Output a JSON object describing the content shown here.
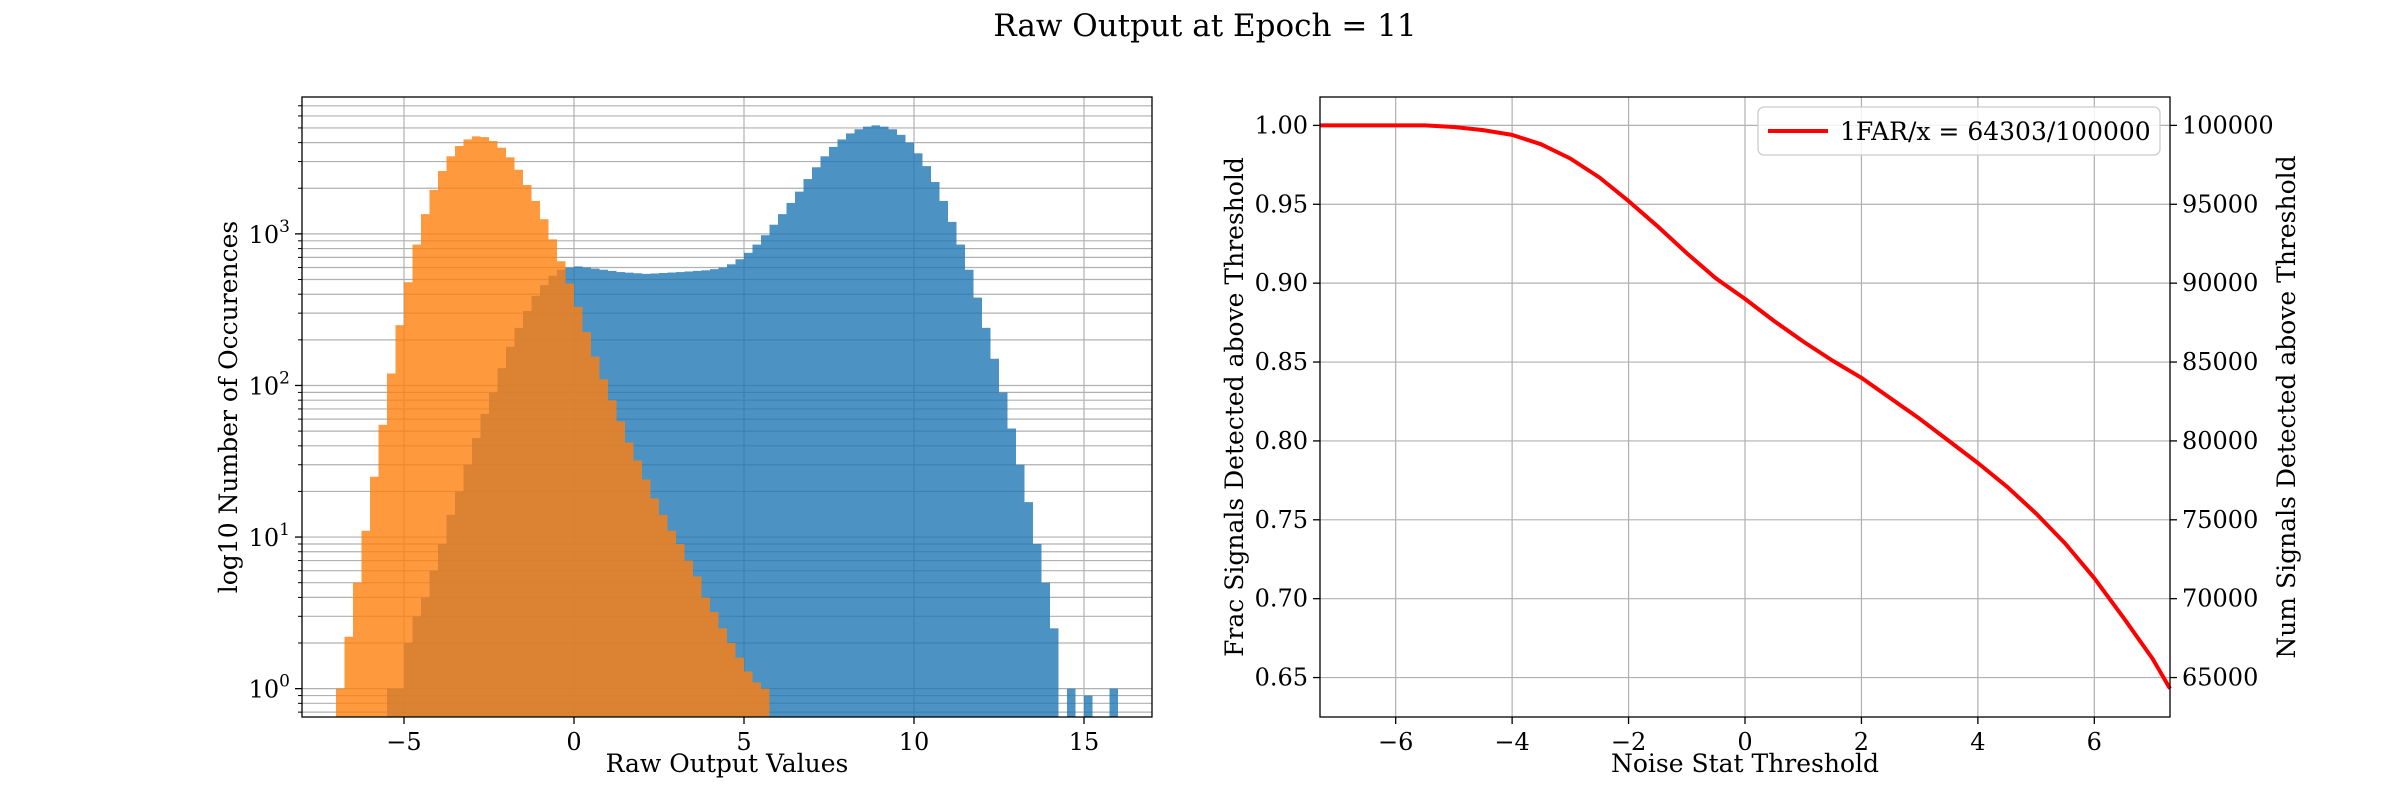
{
  "figure": {
    "title": "Raw Output at Epoch = 11"
  },
  "chart_data": [
    {
      "type": "histogram",
      "yscale": "log",
      "xlabel": "Raw Output Values",
      "ylabel": "log10 Number of Occurences",
      "xlim": [
        -8,
        17
      ],
      "ylim": [
        0.65,
        8000
      ],
      "xticks": [
        -5,
        0,
        5,
        10,
        15
      ],
      "yticks": [
        {
          "value": 1,
          "base": "10",
          "exp": "0"
        },
        {
          "value": 10,
          "base": "10",
          "exp": "1"
        },
        {
          "value": 100,
          "base": "10",
          "exp": "2"
        },
        {
          "value": 1000,
          "base": "10",
          "exp": "3"
        }
      ],
      "grid": true,
      "bin_width": 0.25,
      "series": [
        {
          "color": "#1f77b4",
          "alpha": 0.8,
          "bins": [
            [
              -5.5,
              1
            ],
            [
              -5.25,
              1
            ],
            [
              -5.0,
              2
            ],
            [
              -4.75,
              3
            ],
            [
              -4.5,
              4
            ],
            [
              -4.25,
              6
            ],
            [
              -4.0,
              9
            ],
            [
              -3.75,
              14
            ],
            [
              -3.5,
              20
            ],
            [
              -3.25,
              30
            ],
            [
              -3.0,
              45
            ],
            [
              -2.75,
              65
            ],
            [
              -2.5,
              90
            ],
            [
              -2.25,
              130
            ],
            [
              -2.0,
              180
            ],
            [
              -1.75,
              240
            ],
            [
              -1.5,
              310
            ],
            [
              -1.25,
              390
            ],
            [
              -1.0,
              460
            ],
            [
              -0.75,
              530
            ],
            [
              -0.5,
              580
            ],
            [
              -0.25,
              600
            ],
            [
              0.0,
              610
            ],
            [
              0.25,
              600
            ],
            [
              0.5,
              590
            ],
            [
              0.75,
              580
            ],
            [
              1.0,
              570
            ],
            [
              1.25,
              560
            ],
            [
              1.5,
              555
            ],
            [
              1.75,
              550
            ],
            [
              2.0,
              545
            ],
            [
              2.25,
              548
            ],
            [
              2.5,
              552
            ],
            [
              2.75,
              556
            ],
            [
              3.0,
              560
            ],
            [
              3.25,
              565
            ],
            [
              3.5,
              570
            ],
            [
              3.75,
              575
            ],
            [
              4.0,
              585
            ],
            [
              4.25,
              600
            ],
            [
              4.5,
              630
            ],
            [
              4.75,
              680
            ],
            [
              5.0,
              750
            ],
            [
              5.25,
              850
            ],
            [
              5.5,
              980
            ],
            [
              5.75,
              1150
            ],
            [
              6.0,
              1350
            ],
            [
              6.25,
              1600
            ],
            [
              6.5,
              1900
            ],
            [
              6.75,
              2300
            ],
            [
              7.0,
              2750
            ],
            [
              7.25,
              3250
            ],
            [
              7.5,
              3750
            ],
            [
              7.75,
              4200
            ],
            [
              8.0,
              4600
            ],
            [
              8.25,
              4900
            ],
            [
              8.5,
              5100
            ],
            [
              8.75,
              5200
            ],
            [
              9.0,
              5100
            ],
            [
              9.25,
              4900
            ],
            [
              9.5,
              4500
            ],
            [
              9.75,
              4000
            ],
            [
              10.0,
              3400
            ],
            [
              10.25,
              2800
            ],
            [
              10.5,
              2200
            ],
            [
              10.75,
              1650
            ],
            [
              11.0,
              1200
            ],
            [
              11.25,
              850
            ],
            [
              11.5,
              580
            ],
            [
              11.75,
              380
            ],
            [
              12.0,
              240
            ],
            [
              12.25,
              150
            ],
            [
              12.5,
              90
            ],
            [
              12.75,
              52
            ],
            [
              13.0,
              30
            ],
            [
              13.25,
              17
            ],
            [
              13.5,
              9
            ],
            [
              13.75,
              5
            ],
            [
              14.0,
              2.5
            ],
            [
              14.25,
              0
            ],
            [
              14.5,
              1
            ],
            [
              14.75,
              0
            ],
            [
              15.0,
              0.9
            ],
            [
              15.25,
              0
            ],
            [
              15.5,
              0
            ],
            [
              15.75,
              1
            ]
          ]
        },
        {
          "color": "#ff7f0e",
          "alpha": 0.8,
          "bins": [
            [
              -7.0,
              1
            ],
            [
              -6.75,
              2.2
            ],
            [
              -6.5,
              5
            ],
            [
              -6.25,
              11
            ],
            [
              -6.0,
              25
            ],
            [
              -5.75,
              55
            ],
            [
              -5.5,
              120
            ],
            [
              -5.25,
              250
            ],
            [
              -5.0,
              480
            ],
            [
              -4.75,
              850
            ],
            [
              -4.5,
              1350
            ],
            [
              -4.25,
              1950
            ],
            [
              -4.0,
              2600
            ],
            [
              -3.75,
              3250
            ],
            [
              -3.5,
              3800
            ],
            [
              -3.25,
              4200
            ],
            [
              -3.0,
              4400
            ],
            [
              -2.75,
              4350
            ],
            [
              -2.5,
              4100
            ],
            [
              -2.25,
              3700
            ],
            [
              -2.0,
              3200
            ],
            [
              -1.75,
              2650
            ],
            [
              -1.5,
              2100
            ],
            [
              -1.25,
              1650
            ],
            [
              -1.0,
              1250
            ],
            [
              -0.75,
              920
            ],
            [
              -0.5,
              660
            ],
            [
              -0.25,
              470
            ],
            [
              0.0,
              330
            ],
            [
              0.25,
              225
            ],
            [
              0.5,
              155
            ],
            [
              0.75,
              110
            ],
            [
              1.0,
              80
            ],
            [
              1.25,
              58
            ],
            [
              1.5,
              42
            ],
            [
              1.75,
              32
            ],
            [
              2.0,
              24
            ],
            [
              2.25,
              18
            ],
            [
              2.5,
              14
            ],
            [
              2.75,
              11
            ],
            [
              3.0,
              9
            ],
            [
              3.25,
              7
            ],
            [
              3.5,
              5.5
            ],
            [
              3.75,
              4
            ],
            [
              4.0,
              3.2
            ],
            [
              4.25,
              2.5
            ],
            [
              4.5,
              2
            ],
            [
              4.75,
              1.6
            ],
            [
              5.0,
              1.3
            ],
            [
              5.25,
              1.1
            ],
            [
              5.5,
              1
            ],
            [
              5.75,
              0
            ],
            [
              6.0,
              0
            ],
            [
              6.25,
              0
            ]
          ]
        }
      ]
    },
    {
      "type": "line",
      "xlabel": "Noise Stat Threshold",
      "ylabel": "Frac Signals Detected above Threshold",
      "y2label": "Num Signals Detected above Threshold",
      "xlim": [
        -7.3,
        7.3
      ],
      "ylim": [
        0.625,
        1.018
      ],
      "y2lim": [
        62500,
        101800
      ],
      "xticks": [
        -6,
        -4,
        -2,
        0,
        2,
        4,
        6
      ],
      "xtick_labels": [
        "−6",
        "−4",
        "−2",
        "0",
        "2",
        "4",
        "6"
      ],
      "yticks": [
        0.65,
        0.7,
        0.75,
        0.8,
        0.85,
        0.9,
        0.95,
        1.0
      ],
      "ytick_labels": [
        "0.65",
        "0.70",
        "0.75",
        "0.80",
        "0.85",
        "0.90",
        "0.95",
        "1.00"
      ],
      "y2ticks": [
        65000,
        70000,
        75000,
        80000,
        85000,
        90000,
        95000,
        100000
      ],
      "y2tick_labels": [
        "65000",
        "70000",
        "75000",
        "80000",
        "85000",
        "90000",
        "95000",
        "100000"
      ],
      "grid": true,
      "legend": "top-right",
      "series": [
        {
          "name": "1FAR/x = 64303/100000",
          "color": "#ff0000",
          "x": [
            -7.3,
            -6.5,
            -6.0,
            -5.5,
            -5.0,
            -4.5,
            -4.0,
            -3.5,
            -3.0,
            -2.5,
            -2.0,
            -1.5,
            -1.0,
            -0.5,
            0.0,
            0.5,
            1.0,
            1.5,
            2.0,
            2.5,
            3.0,
            3.5,
            4.0,
            4.5,
            5.0,
            5.5,
            6.0,
            6.5,
            7.0,
            7.3
          ],
          "y": [
            1.0,
            1.0,
            1.0,
            1.0,
            0.999,
            0.997,
            0.994,
            0.988,
            0.979,
            0.967,
            0.952,
            0.936,
            0.919,
            0.903,
            0.89,
            0.876,
            0.863,
            0.851,
            0.84,
            0.827,
            0.814,
            0.8,
            0.786,
            0.771,
            0.754,
            0.735,
            0.713,
            0.688,
            0.662,
            0.643
          ]
        }
      ]
    }
  ]
}
